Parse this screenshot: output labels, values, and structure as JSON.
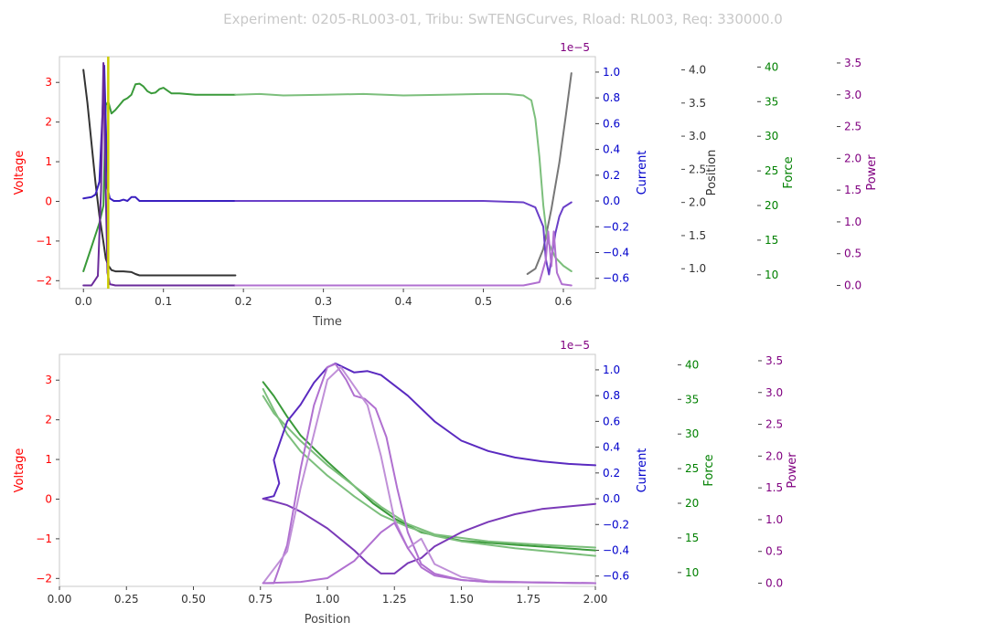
{
  "figure": {
    "title": "Experiment: 0205-RL003-01, Tribu: SwTENGCurves, Rload: RL003, Req: 330000.0"
  },
  "colors": {
    "voltage": "#ff0000",
    "current": "#0000cc",
    "position": "#333333",
    "force": "#008000",
    "power": "#800080",
    "marker": "#cccc00",
    "secondary_title": "#cccccc"
  },
  "chart_data": [
    {
      "type": "line",
      "xlabel": "Time",
      "xlim": [
        -0.03,
        0.64
      ],
      "xticks": [
        "0.0",
        "0.1",
        "0.2",
        "0.3",
        "0.4",
        "0.5",
        "0.6"
      ],
      "marker_x": 0.031,
      "axes": [
        {
          "name": "Voltage",
          "ylabel": "Voltage",
          "ylim": [
            -2.2,
            3.65
          ],
          "ticks": [
            "−2",
            "−1",
            "0",
            "1",
            "2",
            "3"
          ]
        },
        {
          "name": "Current",
          "ylabel": "Current",
          "offset_label": "1e−5",
          "ylim": [
            -0.68,
            1.12
          ],
          "ticks": [
            "−0.6",
            "−0.4",
            "−0.2",
            "0.0",
            "0.2",
            "0.4",
            "0.6",
            "0.8",
            "1.0"
          ]
        },
        {
          "name": "Position",
          "ylabel": "Position",
          "ylim": [
            0.7,
            4.2
          ],
          "ticks": [
            "1.0",
            "1.5",
            "2.0",
            "2.5",
            "3.0",
            "3.5",
            "4.0"
          ]
        },
        {
          "name": "Force",
          "ylabel": "Force",
          "ylim": [
            8,
            41.5
          ],
          "ticks": [
            "10",
            "15",
            "20",
            "25",
            "30",
            "35",
            "40"
          ]
        },
        {
          "name": "Power",
          "ylabel": "Power",
          "ylim": [
            -0.05,
            3.6
          ],
          "ticks": [
            "0.0",
            "0.5",
            "1.0",
            "1.5",
            "2.0",
            "2.5",
            "3.0",
            "3.5"
          ]
        }
      ],
      "series": [
        {
          "axis": "Position",
          "color": "#333333",
          "x": [
            0.0,
            0.005,
            0.01,
            0.015,
            0.02,
            0.025,
            0.028,
            0.031,
            0.035,
            0.04,
            0.05,
            0.06,
            0.065,
            0.07,
            0.08,
            0.1,
            0.15,
            0.19
          ],
          "y": [
            4.0,
            3.5,
            2.9,
            2.3,
            1.8,
            1.4,
            1.15,
            1.05,
            0.98,
            0.96,
            0.96,
            0.95,
            0.92,
            0.9,
            0.9,
            0.9,
            0.9,
            0.9
          ]
        },
        {
          "axis": "Position",
          "color": "#777777",
          "x": [
            0.555,
            0.565,
            0.575,
            0.585,
            0.595,
            0.603,
            0.61
          ],
          "y": [
            0.92,
            1.0,
            1.3,
            1.9,
            2.6,
            3.3,
            3.95
          ]
        },
        {
          "axis": "Force",
          "color": "#3a9a3a",
          "x": [
            0.0,
            0.01,
            0.02,
            0.025,
            0.028,
            0.031,
            0.035,
            0.04,
            0.045,
            0.05,
            0.055,
            0.06,
            0.065,
            0.07,
            0.075,
            0.08,
            0.085,
            0.09,
            0.095,
            0.1,
            0.105,
            0.11,
            0.12,
            0.14,
            0.16,
            0.19
          ],
          "y": [
            10.5,
            14.0,
            17.5,
            20.0,
            34.5,
            35.0,
            33.3,
            33.8,
            34.5,
            35.2,
            35.5,
            36.0,
            37.5,
            37.6,
            37.2,
            36.5,
            36.2,
            36.3,
            36.8,
            37.0,
            36.6,
            36.2,
            36.2,
            36.0,
            36.0,
            36.0
          ]
        },
        {
          "axis": "Force",
          "color": "#7cbf7c",
          "x": [
            0.19,
            0.22,
            0.25,
            0.3,
            0.35,
            0.4,
            0.45,
            0.5,
            0.53,
            0.55,
            0.56,
            0.565,
            0.57,
            0.575,
            0.58,
            0.59,
            0.6,
            0.61
          ],
          "y": [
            36.0,
            36.1,
            35.9,
            36.0,
            36.1,
            35.9,
            36.0,
            36.1,
            36.1,
            35.9,
            35.2,
            32.5,
            27.0,
            20.0,
            15.0,
            12.5,
            11.3,
            10.5
          ]
        },
        {
          "axis": "Current",
          "color": "#3a1fbf",
          "x": [
            0.0,
            0.01,
            0.015,
            0.02,
            0.024,
            0.026,
            0.028,
            0.03,
            0.033,
            0.038,
            0.045,
            0.05,
            0.055,
            0.06,
            0.065,
            0.07,
            0.1,
            0.15,
            0.19
          ],
          "y": [
            0.02,
            0.03,
            0.05,
            0.15,
            0.7,
            1.05,
            0.6,
            0.1,
            0.02,
            0.0,
            0.0,
            0.01,
            0.0,
            0.03,
            0.03,
            0.0,
            0.0,
            0.0,
            0.0
          ]
        },
        {
          "axis": "Current",
          "color": "#6a3fc8",
          "x": [
            0.19,
            0.3,
            0.4,
            0.5,
            0.55,
            0.565,
            0.575,
            0.578,
            0.582,
            0.585,
            0.59,
            0.595,
            0.6,
            0.61
          ],
          "y": [
            0.0,
            0.0,
            0.0,
            0.0,
            -0.01,
            -0.05,
            -0.2,
            -0.45,
            -0.57,
            -0.45,
            -0.25,
            -0.12,
            -0.05,
            -0.01
          ]
        },
        {
          "axis": "Power",
          "color": "#6a2a9a",
          "x": [
            0.0,
            0.01,
            0.018,
            0.022,
            0.025,
            0.027,
            0.03,
            0.033,
            0.04,
            0.1,
            0.19
          ],
          "y": [
            0.0,
            0.0,
            0.15,
            1.5,
            3.5,
            2.0,
            0.2,
            0.02,
            0.0,
            0.0,
            0.0
          ]
        },
        {
          "axis": "Power",
          "color": "#b070d0",
          "x": [
            0.19,
            0.3,
            0.4,
            0.5,
            0.55,
            0.57,
            0.578,
            0.581,
            0.585,
            0.588,
            0.592,
            0.598,
            0.61
          ],
          "y": [
            0.0,
            0.0,
            0.0,
            0.0,
            0.0,
            0.05,
            0.4,
            0.85,
            0.3,
            0.85,
            0.2,
            0.02,
            0.0
          ]
        }
      ]
    },
    {
      "type": "line",
      "xlabel": "Position",
      "xlim": [
        0.0,
        2.0
      ],
      "xticks": [
        "0.00",
        "0.25",
        "0.50",
        "0.75",
        "1.00",
        "1.25",
        "1.50",
        "1.75",
        "2.00"
      ],
      "axes": [
        {
          "name": "Voltage",
          "ylabel": "Voltage",
          "ylim": [
            -2.2,
            3.65
          ],
          "ticks": [
            "−2",
            "−1",
            "0",
            "1",
            "2",
            "3"
          ]
        },
        {
          "name": "Current",
          "ylabel": "Current",
          "offset_label": "1e−5",
          "ylim": [
            -0.68,
            1.12
          ],
          "ticks": [
            "−0.6",
            "−0.4",
            "−0.2",
            "0.0",
            "0.2",
            "0.4",
            "0.6",
            "0.8",
            "1.0"
          ]
        },
        {
          "name": "Force",
          "ylabel": "Force",
          "ylim": [
            8,
            41.5
          ],
          "ticks": [
            "10",
            "15",
            "20",
            "25",
            "30",
            "35",
            "40"
          ]
        },
        {
          "name": "Power",
          "ylabel": "Power",
          "ylim": [
            -0.05,
            3.6
          ],
          "ticks": [
            "0.0",
            "0.5",
            "1.0",
            "1.5",
            "2.0",
            "2.5",
            "3.0",
            "3.5"
          ]
        }
      ],
      "series": [
        {
          "axis": "Force",
          "color": "#3a9a3a",
          "x": [
            0.76,
            0.78,
            0.8,
            0.85,
            0.9,
            1.0,
            1.1,
            1.17,
            1.25,
            1.35,
            1.5,
            1.7,
            2.0
          ],
          "y": [
            37.5,
            36.5,
            35.5,
            32.5,
            29.8,
            26.0,
            22.5,
            20.0,
            17.8,
            15.8,
            14.6,
            14.0,
            13.2
          ]
        },
        {
          "axis": "Force",
          "color": "#7cbf7c",
          "x": [
            0.76,
            0.8,
            0.85,
            0.9,
            1.0,
            1.1,
            1.2,
            1.3,
            1.4,
            1.5,
            1.7,
            2.0
          ],
          "y": [
            36.5,
            33.5,
            30.0,
            27.5,
            24.0,
            21.0,
            18.3,
            16.6,
            15.3,
            14.5,
            13.5,
            12.4
          ]
        },
        {
          "axis": "Force",
          "color": "#7cbf7c",
          "x": [
            0.76,
            0.8,
            0.9,
            1.0,
            1.1,
            1.2,
            1.3,
            1.4,
            1.6,
            1.8,
            2.0
          ],
          "y": [
            35.5,
            33.0,
            29.0,
            25.5,
            22.5,
            19.5,
            17.0,
            15.5,
            14.5,
            14.0,
            13.6
          ]
        },
        {
          "axis": "Current",
          "color": "#5a2ac0",
          "x": [
            0.76,
            0.8,
            0.82,
            0.8,
            0.85,
            0.9,
            0.95,
            1.0,
            1.03,
            1.06,
            1.1,
            1.15,
            1.2,
            1.3,
            1.4,
            1.5,
            1.6,
            1.7,
            1.8,
            1.9,
            2.0
          ],
          "y": [
            0.0,
            0.02,
            0.12,
            0.3,
            0.6,
            0.73,
            0.9,
            1.02,
            1.05,
            1.02,
            0.98,
            0.99,
            0.96,
            0.8,
            0.6,
            0.45,
            0.37,
            0.32,
            0.29,
            0.27,
            0.26
          ]
        },
        {
          "axis": "Current",
          "color": "#7a3ab8",
          "x": [
            0.76,
            0.8,
            0.85,
            0.9,
            1.0,
            1.1,
            1.15,
            1.2,
            1.25,
            1.3,
            1.35,
            1.4,
            1.5,
            1.6,
            1.7,
            1.8,
            2.0
          ],
          "y": [
            0.0,
            -0.02,
            -0.05,
            -0.1,
            -0.23,
            -0.4,
            -0.5,
            -0.58,
            -0.58,
            -0.5,
            -0.46,
            -0.37,
            -0.26,
            -0.18,
            -0.12,
            -0.08,
            -0.04
          ]
        },
        {
          "axis": "Power",
          "color": "#b070d0",
          "x": [
            0.76,
            0.8,
            0.85,
            0.9,
            0.95,
            1.0,
            1.03,
            1.07,
            1.1,
            1.14,
            1.18,
            1.22,
            1.26,
            1.3,
            1.35,
            1.4,
            1.5,
            1.6,
            1.8,
            2.0
          ],
          "y": [
            0.0,
            0.0,
            0.6,
            1.8,
            2.8,
            3.4,
            3.45,
            3.2,
            2.95,
            2.9,
            2.75,
            2.3,
            1.5,
            0.8,
            0.3,
            0.15,
            0.05,
            0.02,
            0.01,
            0.0
          ]
        },
        {
          "axis": "Power",
          "color": "#c090d8",
          "x": [
            0.76,
            0.85,
            0.9,
            1.0,
            1.05,
            1.1,
            1.15,
            1.2,
            1.25,
            1.3,
            1.35,
            1.4,
            1.5,
            1.6,
            1.8,
            2.0
          ],
          "y": [
            0.0,
            0.5,
            1.5,
            3.2,
            3.4,
            3.1,
            2.8,
            2.0,
            1.0,
            0.55,
            0.7,
            0.3,
            0.1,
            0.03,
            0.01,
            0.0
          ]
        },
        {
          "axis": "Power",
          "color": "#b070d0",
          "x": [
            0.76,
            0.9,
            1.0,
            1.1,
            1.2,
            1.25,
            1.3,
            1.35,
            1.4,
            1.5,
            1.6,
            1.8,
            2.0
          ],
          "y": [
            0.0,
            0.02,
            0.08,
            0.35,
            0.8,
            0.95,
            0.55,
            0.25,
            0.12,
            0.05,
            0.02,
            0.01,
            0.0
          ]
        }
      ]
    }
  ]
}
